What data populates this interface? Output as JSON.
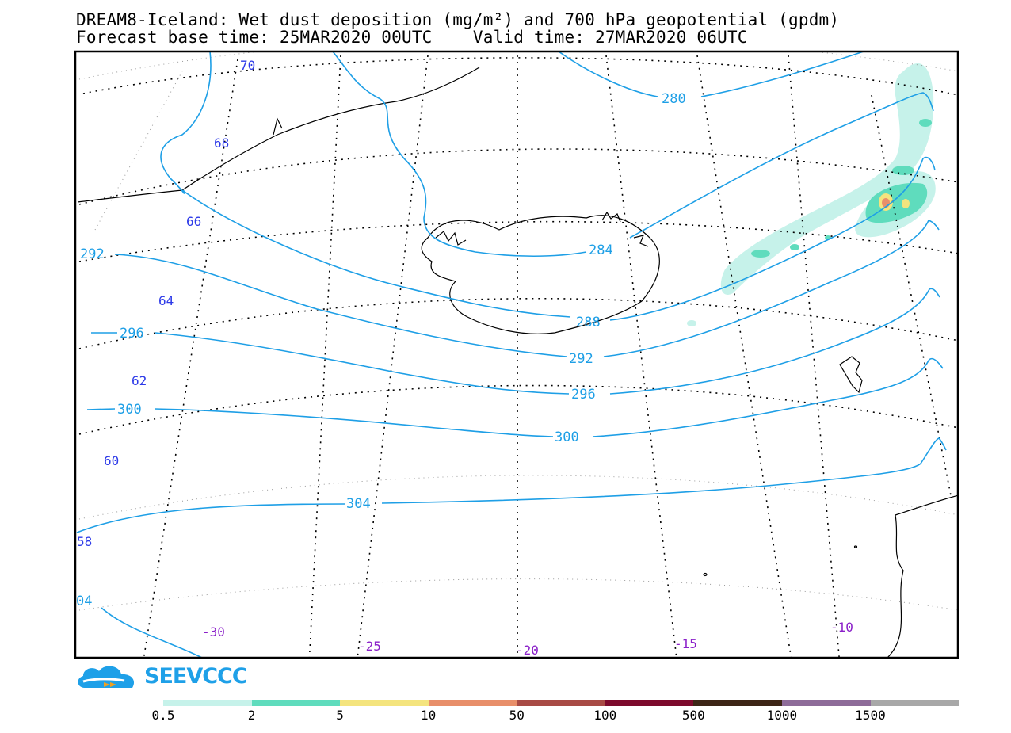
{
  "title": {
    "line1": "DREAM8-Iceland: Wet dust deposition (mg/m²) and 700 hPa geopotential (gpdm)",
    "line2": "Forecast base time: 25MAR2020 00UTC    Valid time: 27MAR2020 06UTC"
  },
  "contours": [
    {
      "value": "280",
      "label": "280"
    },
    {
      "value": "284",
      "label": "284"
    },
    {
      "value": "288",
      "label": "288"
    },
    {
      "value": "292",
      "label": "292"
    },
    {
      "value": "296",
      "label": "296"
    },
    {
      "value": "300",
      "label": "300"
    },
    {
      "value": "304",
      "label": "304"
    }
  ],
  "latitude_labels": [
    "70",
    "68",
    "66",
    "64",
    "62",
    "60",
    "58"
  ],
  "longitude_labels": [
    "-30",
    "-25",
    "-20",
    "-15",
    "-10"
  ],
  "edge_labels": {
    "left_292": "292",
    "left_296": "296",
    "left_300": "300",
    "left_304": "304",
    "bottom_left": "04"
  },
  "colorbar": {
    "colors": [
      "#c6f2ea",
      "#5fdcbd",
      "#f4e47e",
      "#e88f6a",
      "#a84b45",
      "#7d0a2c",
      "#3d2616",
      "#8e6c99",
      "#a8a8a8"
    ],
    "ticks": [
      "0.5",
      "2",
      "5",
      "10",
      "50",
      "100",
      "500",
      "1000",
      "1500"
    ]
  },
  "logo": {
    "text": "SEEVCCC",
    "icon": "cloud-arrow-icon"
  }
}
